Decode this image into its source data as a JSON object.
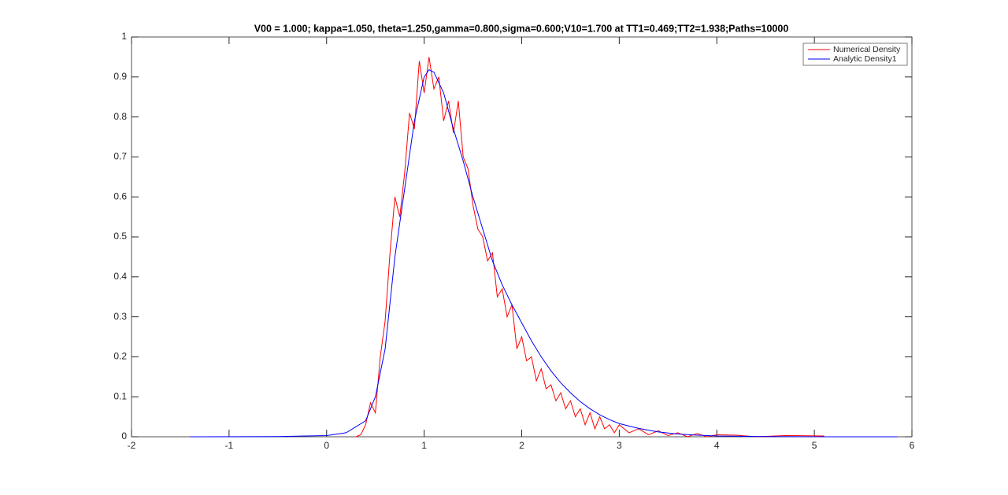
{
  "chart_data": {
    "type": "line",
    "title": "V00 = 1.000; kappa=1.050, theta=1.250,gamma=0.800,sigma=0.600;V10=1.700 at TT1=0.469;TT2=1.938;Paths=10000",
    "xlim": [
      -2,
      6
    ],
    "xticks": [
      -2,
      -1,
      0,
      1,
      2,
      3,
      4,
      5,
      6
    ],
    "ylim": [
      0,
      1
    ],
    "yticks": [
      0,
      0.1,
      0.2,
      0.3,
      0.4,
      0.5,
      0.6,
      0.7,
      0.8,
      0.9,
      1
    ],
    "legend": "top-right",
    "series": [
      {
        "name": "Numerical Density",
        "color": "#ff0000",
        "x": [
          0.3,
          0.35,
          0.4,
          0.45,
          0.5,
          0.55,
          0.6,
          0.65,
          0.7,
          0.75,
          0.8,
          0.85,
          0.9,
          0.95,
          1.0,
          1.05,
          1.1,
          1.15,
          1.2,
          1.25,
          1.3,
          1.35,
          1.4,
          1.45,
          1.5,
          1.55,
          1.6,
          1.65,
          1.7,
          1.75,
          1.8,
          1.85,
          1.9,
          1.95,
          2.0,
          2.05,
          2.1,
          2.15,
          2.2,
          2.25,
          2.3,
          2.35,
          2.4,
          2.45,
          2.5,
          2.55,
          2.6,
          2.65,
          2.7,
          2.75,
          2.8,
          2.85,
          2.9,
          2.95,
          3.0,
          3.1,
          3.2,
          3.3,
          3.4,
          3.5,
          3.6,
          3.7,
          3.8,
          3.9,
          4.0,
          4.2,
          4.4,
          4.7,
          5.1
        ],
        "values": [
          0,
          0.005,
          0.03,
          0.085,
          0.06,
          0.2,
          0.29,
          0.46,
          0.6,
          0.55,
          0.66,
          0.81,
          0.77,
          0.94,
          0.86,
          0.95,
          0.87,
          0.9,
          0.79,
          0.84,
          0.76,
          0.84,
          0.7,
          0.67,
          0.58,
          0.52,
          0.5,
          0.44,
          0.46,
          0.35,
          0.37,
          0.3,
          0.33,
          0.22,
          0.25,
          0.19,
          0.2,
          0.14,
          0.17,
          0.12,
          0.13,
          0.09,
          0.11,
          0.07,
          0.09,
          0.05,
          0.07,
          0.03,
          0.06,
          0.02,
          0.05,
          0.02,
          0.03,
          0.01,
          0.03,
          0.01,
          0.02,
          0.005,
          0.015,
          0.003,
          0.01,
          0,
          0.008,
          0,
          0.005,
          0.004,
          0,
          0.003,
          0.002
        ]
      },
      {
        "name": "Analytic Density1",
        "color": "#0000ff",
        "x": [
          -1.4,
          -0.5,
          0,
          0.2,
          0.4,
          0.5,
          0.6,
          0.7,
          0.8,
          0.9,
          1.0,
          1.05,
          1.1,
          1.2,
          1.3,
          1.4,
          1.5,
          1.6,
          1.7,
          1.8,
          1.9,
          2.0,
          2.1,
          2.2,
          2.3,
          2.4,
          2.5,
          2.6,
          2.7,
          2.8,
          2.9,
          3.0,
          3.2,
          3.4,
          3.6,
          3.8,
          4.0,
          4.5,
          5.0,
          5.85
        ],
        "values": [
          0,
          0.0005,
          0.003,
          0.01,
          0.04,
          0.1,
          0.22,
          0.45,
          0.62,
          0.79,
          0.9,
          0.918,
          0.912,
          0.86,
          0.77,
          0.69,
          0.6,
          0.52,
          0.44,
          0.38,
          0.33,
          0.285,
          0.24,
          0.2,
          0.165,
          0.135,
          0.11,
          0.088,
          0.07,
          0.055,
          0.043,
          0.033,
          0.021,
          0.012,
          0.007,
          0.004,
          0.002,
          0.0005,
          0,
          0
        ]
      }
    ]
  }
}
